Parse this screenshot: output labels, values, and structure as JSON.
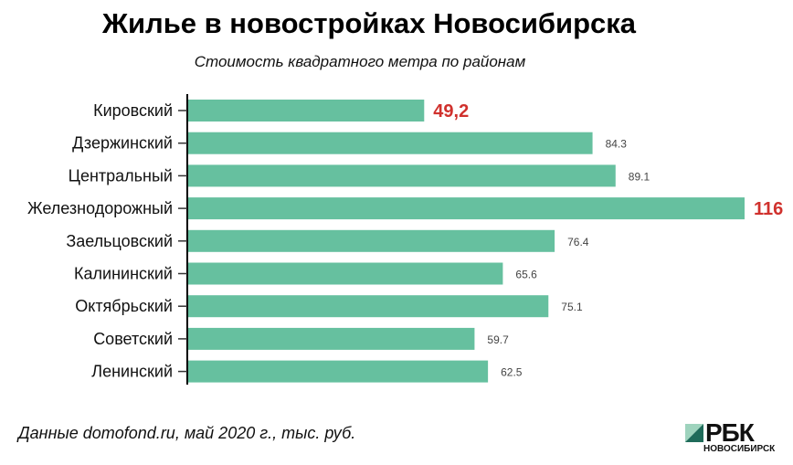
{
  "chart_data": {
    "type": "bar",
    "orientation": "horizontal",
    "title": "Жилье в новостройках Новосибирска",
    "subtitle": "Стоимость квадратного метра по районам",
    "categories": [
      "Кировский",
      "Дзержинский",
      "Центральный",
      "Железнодорожный",
      "Заельцовский",
      "Калининский",
      "Октябрьский",
      "Советский",
      "Ленинский"
    ],
    "values": [
      49.2,
      84.3,
      89.1,
      116,
      76.4,
      65.6,
      75.1,
      59.7,
      62.5
    ],
    "value_labels": [
      "49,2",
      "84.3",
      "89.1",
      "116",
      "76.4",
      "65.6",
      "75.1",
      "59.7",
      "62.5"
    ],
    "highlighted": [
      true,
      false,
      false,
      true,
      false,
      false,
      false,
      false,
      false
    ],
    "xlim": [
      0,
      116
    ],
    "grid": false,
    "bar_color": "#66c09f",
    "highlight_color": "#d0312d",
    "source": "Данные domofond.ru, май 2020 г., тыс. руб."
  },
  "logo": {
    "name": "РБК",
    "region": "НОВОСИБИРСК"
  }
}
